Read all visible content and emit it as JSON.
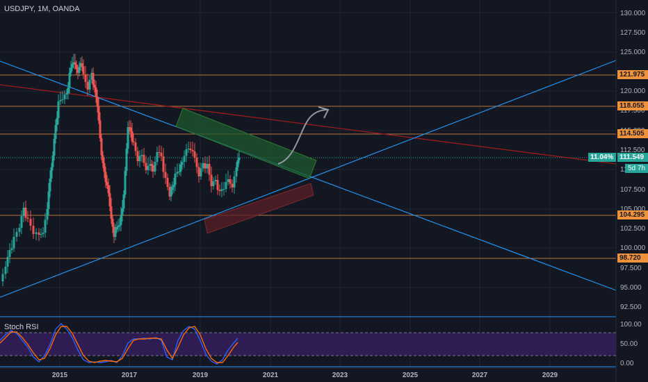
{
  "symbol_title": "USDJPY, 1M, OANDA",
  "indicator_title": "Stoch RSI",
  "price_axis_labels": [
    "130.000",
    "127.500",
    "125.000",
    "120.000",
    "117.500",
    "115.000",
    "112.500",
    "110.000",
    "107.500",
    "105.000",
    "102.500",
    "100.000",
    "97.500",
    "95.000",
    "92.500"
  ],
  "rsi_axis_labels": [
    "100.00",
    "50.00",
    "0.00"
  ],
  "time_axis_labels": [
    "2015",
    "2017",
    "2019",
    "2021",
    "2023",
    "2025",
    "2027",
    "2029"
  ],
  "price_levels": [
    {
      "label": "121.975",
      "color": "#f0923a"
    },
    {
      "label": "118.055",
      "color": "#f0923a"
    },
    {
      "label": "114.505",
      "color": "#f0923a"
    },
    {
      "label": "104.295",
      "color": "#f0923a"
    },
    {
      "label": "98.720",
      "color": "#f0923a"
    }
  ],
  "current_price": {
    "percent": "11.04%",
    "price": "111.549",
    "countdown": "5d 7h",
    "color": "#26a69a"
  },
  "colors": {
    "bull": "#26a69a",
    "bear": "#ef5350",
    "trend_blue": "#2196f3",
    "trend_red": "#b71c1c",
    "stoch_k": "#2962ff",
    "stoch_d": "#ff6d00",
    "rsi_band": "#4a2a7a"
  }
}
